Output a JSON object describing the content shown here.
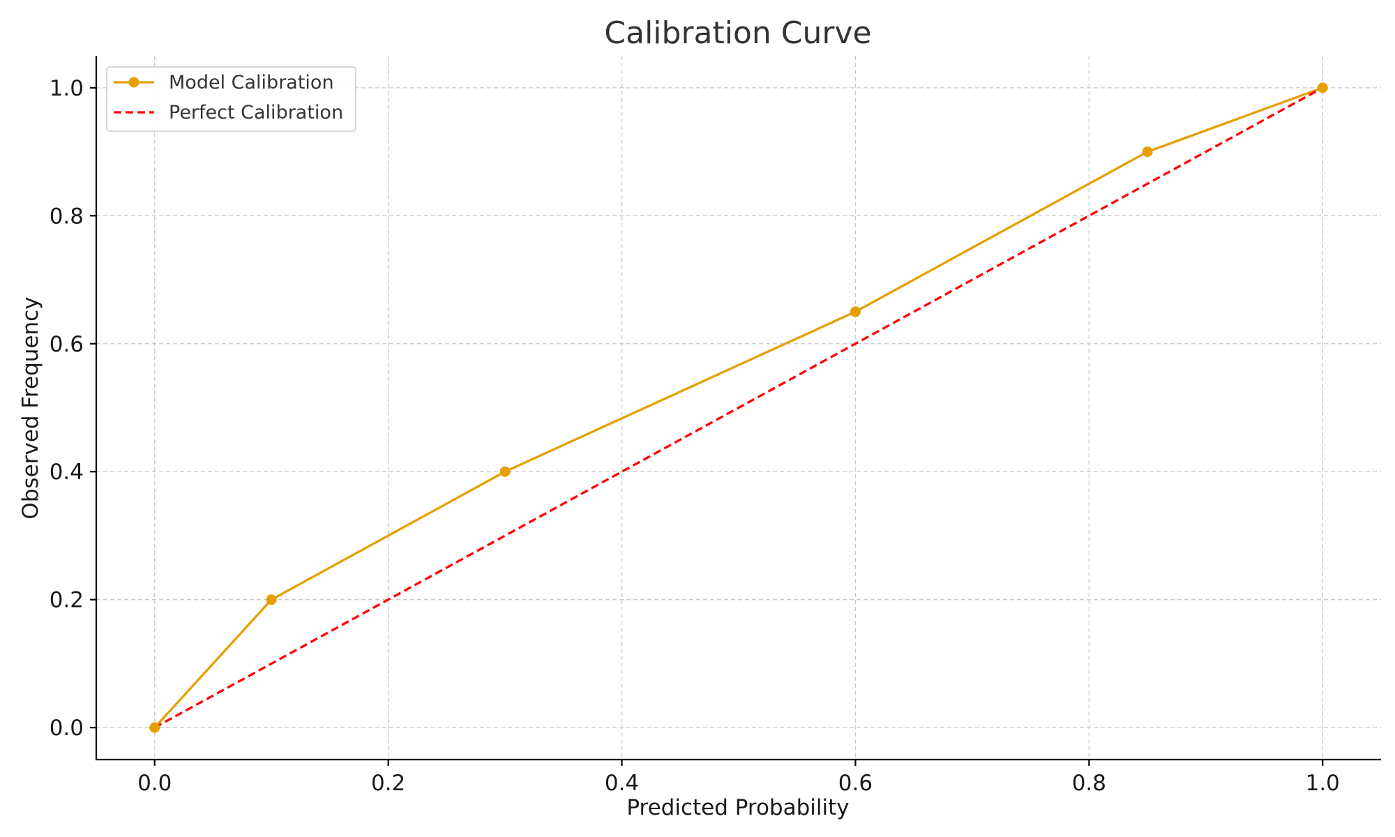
{
  "chart_data": {
    "type": "line",
    "title": "Calibration Curve",
    "xlabel": "Predicted Probability",
    "ylabel": "Observed Frequency",
    "xlim": [
      -0.05,
      1.05
    ],
    "ylim": [
      -0.05,
      1.05
    ],
    "xticks": [
      0.0,
      0.2,
      0.4,
      0.6,
      0.8,
      1.0
    ],
    "yticks": [
      0.0,
      0.2,
      0.4,
      0.6,
      0.8,
      1.0
    ],
    "xtick_labels": [
      "0.0",
      "0.2",
      "0.4",
      "0.6",
      "0.8",
      "1.0"
    ],
    "ytick_labels": [
      "0.0",
      "0.2",
      "0.4",
      "0.6",
      "0.8",
      "1.0"
    ],
    "grid": true,
    "legend_position": "top-left",
    "series": [
      {
        "name": "Model Calibration",
        "color": "#e69f00",
        "style": "solid",
        "marker": "circle",
        "x": [
          0.0,
          0.1,
          0.3,
          0.6,
          0.85,
          1.0
        ],
        "y": [
          0.0,
          0.2,
          0.4,
          0.65,
          0.9,
          1.0
        ]
      },
      {
        "name": "Perfect Calibration",
        "color": "#ff0000",
        "style": "dashed",
        "marker": "none",
        "x": [
          0.0,
          1.0
        ],
        "y": [
          0.0,
          1.0
        ]
      }
    ]
  }
}
